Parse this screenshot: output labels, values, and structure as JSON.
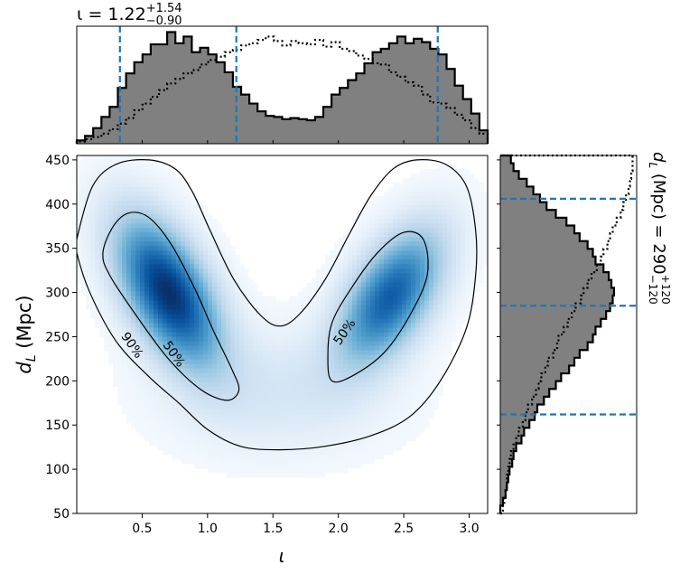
{
  "chart_data": [
    {
      "panel": "top-marginal",
      "type": "histogram",
      "title": {
        "prefix": "ι = 1.22",
        "sup": "+1.54",
        "sub": "−0.90"
      },
      "xlim": [
        0.0,
        3.1416
      ],
      "interval_lines": [
        0.33,
        1.22,
        2.76
      ],
      "line_color": "#1f77b4",
      "fill_color": "#808080",
      "series": [
        {
          "name": "posterior",
          "style": "filled-step",
          "values": [
            0.03,
            0.07,
            0.14,
            0.24,
            0.33,
            0.5,
            0.63,
            0.73,
            0.8,
            0.89,
            0.89,
            1.0,
            0.9,
            0.96,
            0.82,
            0.86,
            0.8,
            0.73,
            0.64,
            0.51,
            0.44,
            0.36,
            0.29,
            0.25,
            0.24,
            0.22,
            0.23,
            0.22,
            0.21,
            0.24,
            0.33,
            0.44,
            0.5,
            0.57,
            0.63,
            0.72,
            0.82,
            0.85,
            0.9,
            0.96,
            0.9,
            0.94,
            0.91,
            0.85,
            0.8,
            0.67,
            0.52,
            0.4,
            0.27,
            0.12
          ]
        },
        {
          "name": "prior",
          "style": "dotted-step",
          "values": [
            0.02,
            0.04,
            0.06,
            0.09,
            0.13,
            0.18,
            0.23,
            0.3,
            0.36,
            0.42,
            0.48,
            0.54,
            0.58,
            0.63,
            0.66,
            0.71,
            0.75,
            0.78,
            0.82,
            0.84,
            0.88,
            0.9,
            0.93,
            0.96,
            0.92,
            0.88,
            0.92,
            0.9,
            0.89,
            0.93,
            0.87,
            0.91,
            0.85,
            0.83,
            0.79,
            0.76,
            0.72,
            0.71,
            0.64,
            0.6,
            0.55,
            0.52,
            0.44,
            0.37,
            0.36,
            0.32,
            0.26,
            0.21,
            0.14,
            0.09
          ]
        }
      ]
    },
    {
      "panel": "main-2d",
      "type": "heatmap",
      "xlabel": "ι",
      "ylabel": {
        "main": "d",
        "sub": "L",
        "units": " (Mpc)"
      },
      "xlim": [
        0.0,
        3.1416
      ],
      "ylim": [
        50,
        455
      ],
      "xticks": [
        0.5,
        1.0,
        1.5,
        2.0,
        2.5,
        3.0
      ],
      "xtick_labels": [
        "0.5",
        "1.0",
        "1.5",
        "2.0",
        "2.5",
        "3.0"
      ],
      "yticks": [
        50,
        100,
        150,
        200,
        250,
        300,
        350,
        400,
        450
      ],
      "ytick_labels": [
        "50",
        "100",
        "150",
        "200",
        "250",
        "300",
        "350",
        "400",
        "450"
      ],
      "colormap": "Blues",
      "density_modes": [
        {
          "x": 0.7,
          "y": 300,
          "sx": 0.26,
          "sy": 55,
          "rho": -0.55,
          "weight": 1.0
        },
        {
          "x": 2.4,
          "y": 295,
          "sx": 0.26,
          "sy": 50,
          "rho": 0.55,
          "weight": 0.8
        }
      ],
      "contours": [
        {
          "level": "90%",
          "color": "#000000",
          "points": [
            [
              0.0,
              360
            ],
            [
              0.12,
              420
            ],
            [
              0.3,
              445
            ],
            [
              0.55,
              450
            ],
            [
              0.75,
              440
            ],
            [
              0.88,
              415
            ],
            [
              1.02,
              370
            ],
            [
              1.2,
              315
            ],
            [
              1.4,
              275
            ],
            [
              1.55,
              262
            ],
            [
              1.7,
              275
            ],
            [
              1.9,
              315
            ],
            [
              2.08,
              365
            ],
            [
              2.25,
              410
            ],
            [
              2.42,
              440
            ],
            [
              2.6,
              450
            ],
            [
              2.82,
              445
            ],
            [
              2.98,
              420
            ],
            [
              3.05,
              370
            ],
            [
              3.05,
              320
            ],
            [
              2.98,
              260
            ],
            [
              2.78,
              200
            ],
            [
              2.55,
              160
            ],
            [
              2.25,
              138
            ],
            [
              1.9,
              126
            ],
            [
              1.55,
              122
            ],
            [
              1.25,
              126
            ],
            [
              1.0,
              145
            ],
            [
              0.78,
              175
            ],
            [
              0.55,
              205
            ],
            [
              0.3,
              245
            ],
            [
              0.1,
              300
            ],
            [
              0.0,
              345
            ]
          ]
        },
        {
          "level": "50%",
          "color": "#000000",
          "points": [
            [
              0.2,
              345
            ],
            [
              0.28,
              375
            ],
            [
              0.4,
              390
            ],
            [
              0.55,
              385
            ],
            [
              0.72,
              355
            ],
            [
              0.9,
              305
            ],
            [
              1.05,
              255
            ],
            [
              1.18,
              215
            ],
            [
              1.24,
              190
            ],
            [
              1.15,
              178
            ],
            [
              0.95,
              190
            ],
            [
              0.7,
              225
            ],
            [
              0.45,
              275
            ],
            [
              0.25,
              320
            ]
          ]
        },
        {
          "level": "50%",
          "color": "#000000",
          "points": [
            [
              1.95,
              265
            ],
            [
              2.1,
              305
            ],
            [
              2.3,
              345
            ],
            [
              2.5,
              368
            ],
            [
              2.65,
              360
            ],
            [
              2.68,
              320
            ],
            [
              2.55,
              275
            ],
            [
              2.35,
              232
            ],
            [
              2.1,
              205
            ],
            [
              1.95,
              200
            ],
            [
              1.92,
              225
            ]
          ]
        }
      ],
      "contour_labels": [
        {
          "text": "90%",
          "x": 0.42,
          "y": 240,
          "rotate": 55
        },
        {
          "text": "50%",
          "x": 0.74,
          "y": 230,
          "rotate": 55
        },
        {
          "text": "50%",
          "x": 2.05,
          "y": 255,
          "rotate": -55
        }
      ]
    },
    {
      "panel": "right-marginal",
      "type": "histogram",
      "orientation": "horizontal",
      "title": {
        "prefix": "d",
        "sub_letter": "L",
        "mid": " (Mpc) = 290",
        "sup": "+120",
        "sub": "−120"
      },
      "ylim": [
        50,
        455
      ],
      "interval_lines": [
        162,
        285,
        406
      ],
      "line_color": "#1f77b4",
      "fill_color": "#808080",
      "series": [
        {
          "name": "posterior",
          "style": "filled-step",
          "values": [
            0.0,
            0.02,
            0.04,
            0.05,
            0.06,
            0.07,
            0.09,
            0.1,
            0.12,
            0.16,
            0.18,
            0.22,
            0.26,
            0.28,
            0.33,
            0.37,
            0.42,
            0.46,
            0.52,
            0.56,
            0.6,
            0.66,
            0.7,
            0.72,
            0.76,
            0.8,
            0.83,
            0.85,
            0.86,
            0.84,
            0.82,
            0.78,
            0.72,
            0.7,
            0.66,
            0.6,
            0.56,
            0.5,
            0.42,
            0.35,
            0.3,
            0.25,
            0.2,
            0.14,
            0.1,
            0.08
          ]
        },
        {
          "name": "prior",
          "style": "dotted-step",
          "values": [
            0.02,
            0.03,
            0.04,
            0.05,
            0.05,
            0.06,
            0.07,
            0.08,
            0.1,
            0.12,
            0.14,
            0.17,
            0.19,
            0.21,
            0.24,
            0.27,
            0.29,
            0.31,
            0.34,
            0.36,
            0.4,
            0.43,
            0.44,
            0.48,
            0.51,
            0.54,
            0.57,
            0.61,
            0.63,
            0.66,
            0.69,
            0.73,
            0.76,
            0.78,
            0.81,
            0.83,
            0.85,
            0.88,
            0.91,
            0.93,
            0.95,
            0.97,
            0.98,
            0.99,
            1.0,
            1.0
          ]
        }
      ]
    }
  ]
}
